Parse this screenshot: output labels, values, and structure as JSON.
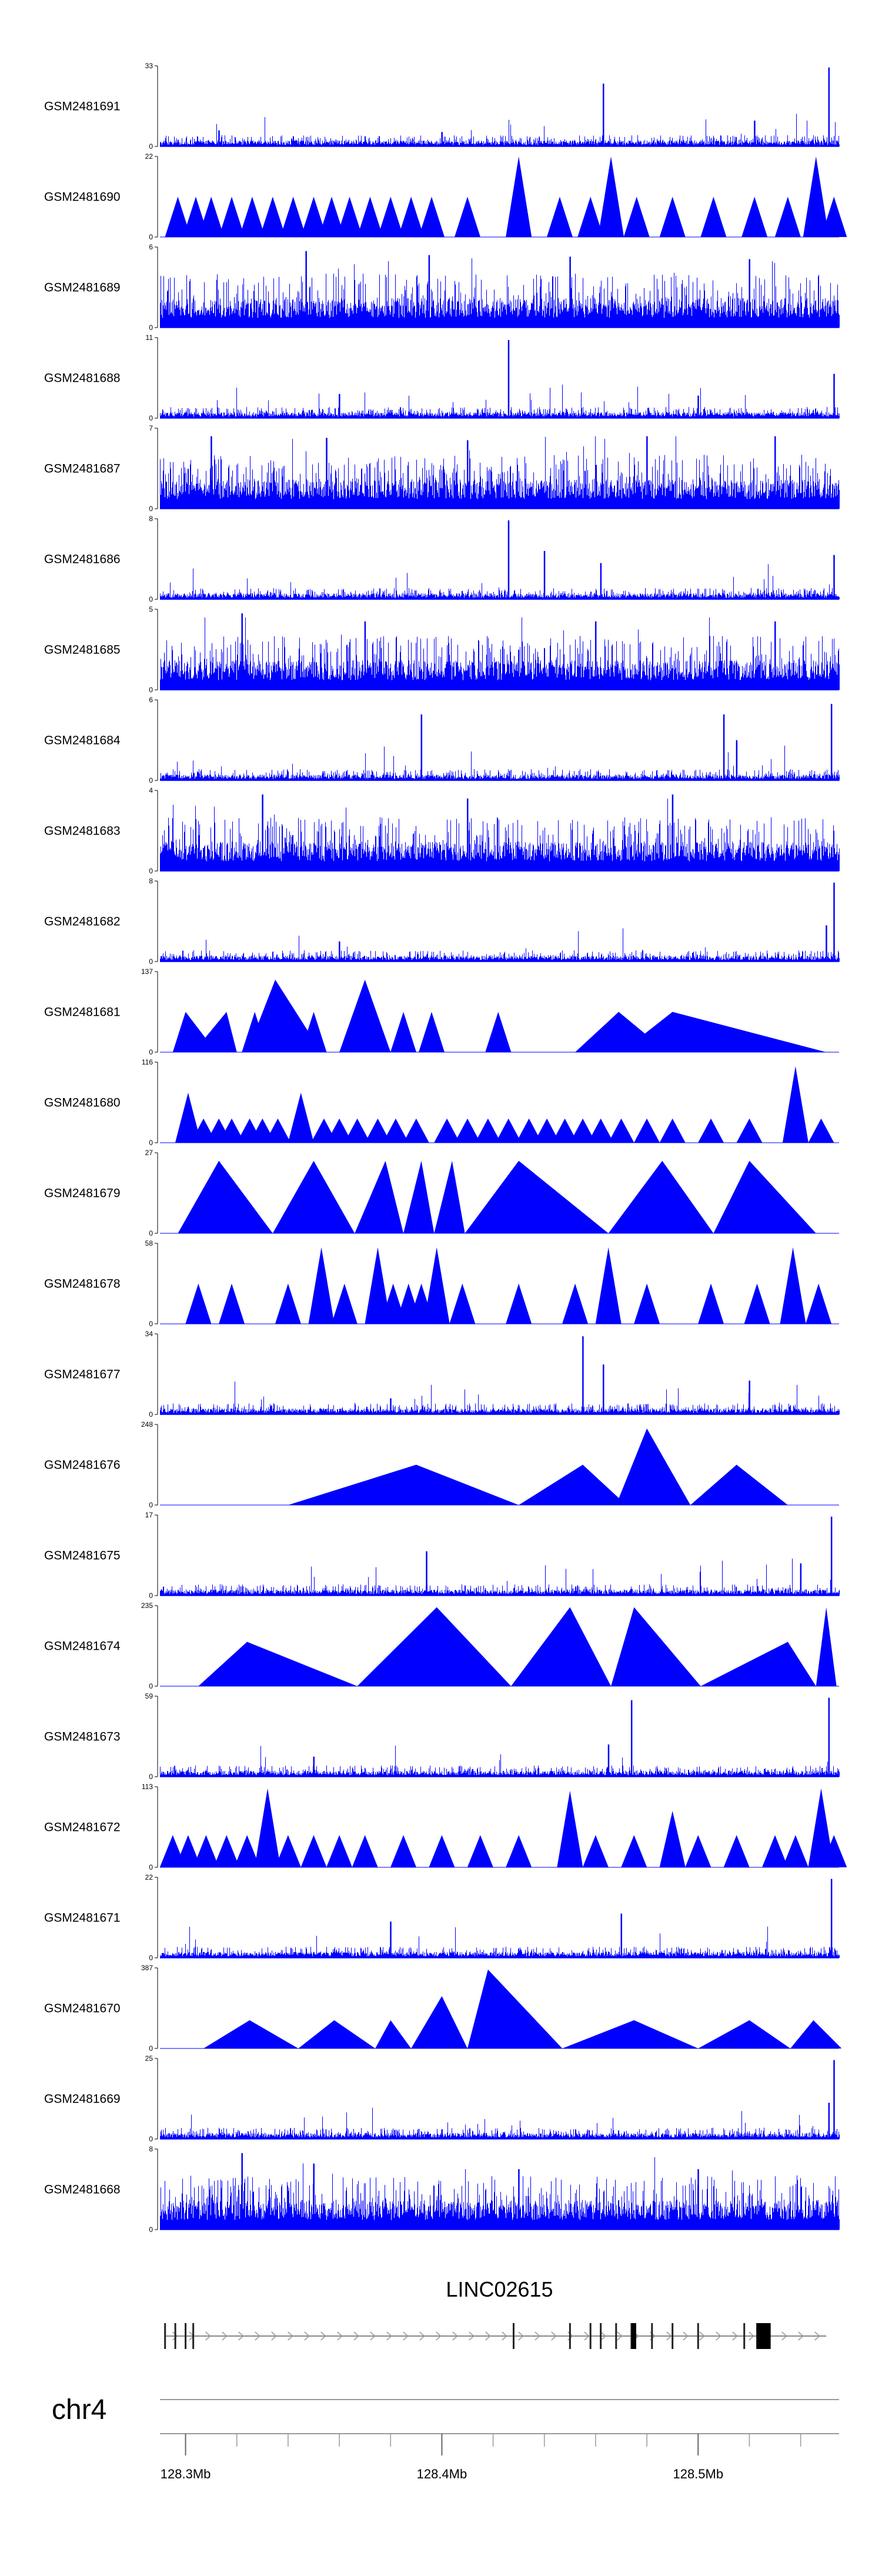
{
  "chart_data": {
    "type": "area",
    "title": "",
    "chromosome": "chr4",
    "gene": "LINC02615",
    "xlim": [
      128.29,
      128.555
    ],
    "x_unit": "Mb",
    "x_ticks": [
      {
        "value": 128.3,
        "label": "128.3Mb"
      },
      {
        "value": 128.4,
        "label": "128.4Mb"
      },
      {
        "value": 128.5,
        "label": "128.5Mb"
      }
    ],
    "color": "#0000ff",
    "tracks": [
      {
        "name": "GSM2481691",
        "ymax": 33,
        "style": "dense",
        "peaks": [
          [
            128.463,
            0.78
          ],
          [
            128.522,
            0.32
          ],
          [
            128.551,
            0.98
          ],
          [
            128.313,
            0.2
          ],
          [
            128.4,
            0.18
          ]
        ]
      },
      {
        "name": "GSM2481690",
        "ymax": 22,
        "style": "triangles",
        "peaks": [
          [
            128.297,
            0.5
          ],
          [
            128.304,
            0.5
          ],
          [
            128.31,
            0.5
          ],
          [
            128.318,
            0.5
          ],
          [
            128.326,
            0.5
          ],
          [
            128.334,
            0.5
          ],
          [
            128.342,
            0.5
          ],
          [
            128.35,
            0.5
          ],
          [
            128.357,
            0.5
          ],
          [
            128.364,
            0.5
          ],
          [
            128.372,
            0.5
          ],
          [
            128.38,
            0.5
          ],
          [
            128.388,
            0.5
          ],
          [
            128.396,
            0.5
          ],
          [
            128.41,
            0.5
          ],
          [
            128.43,
            1.0
          ],
          [
            128.446,
            0.5
          ],
          [
            128.458,
            0.5
          ],
          [
            128.466,
            1.0
          ],
          [
            128.476,
            0.5
          ],
          [
            128.49,
            0.5
          ],
          [
            128.506,
            0.5
          ],
          [
            128.522,
            0.5
          ],
          [
            128.535,
            0.5
          ],
          [
            128.546,
            1.0
          ],
          [
            128.553,
            0.5
          ]
        ]
      },
      {
        "name": "GSM2481689",
        "ymax": 6,
        "style": "noise",
        "peaks": [
          [
            128.347,
            0.95
          ],
          [
            128.395,
            0.9
          ],
          [
            128.45,
            0.88
          ],
          [
            128.52,
            0.85
          ]
        ]
      },
      {
        "name": "GSM2481688",
        "ymax": 11,
        "style": "dense",
        "peaks": [
          [
            128.426,
            0.97
          ],
          [
            128.553,
            0.55
          ],
          [
            128.36,
            0.3
          ],
          [
            128.5,
            0.28
          ]
        ]
      },
      {
        "name": "GSM2481687",
        "ymax": 7,
        "style": "noise",
        "peaks": [
          [
            128.31,
            0.9
          ],
          [
            128.355,
            0.88
          ],
          [
            128.41,
            0.85
          ],
          [
            128.48,
            0.9
          ],
          [
            128.53,
            0.9
          ]
        ]
      },
      {
        "name": "GSM2481686",
        "ymax": 8,
        "style": "dense",
        "peaks": [
          [
            128.426,
            0.98
          ],
          [
            128.44,
            0.6
          ],
          [
            128.462,
            0.45
          ],
          [
            128.553,
            0.55
          ]
        ]
      },
      {
        "name": "GSM2481685",
        "ymax": 5,
        "style": "noise",
        "peaks": [
          [
            128.322,
            0.95
          ],
          [
            128.37,
            0.85
          ],
          [
            128.46,
            0.85
          ],
          [
            128.53,
            0.85
          ]
        ]
      },
      {
        "name": "GSM2481684",
        "ymax": 6,
        "style": "dense",
        "peaks": [
          [
            128.392,
            0.82
          ],
          [
            128.51,
            0.82
          ],
          [
            128.515,
            0.5
          ],
          [
            128.552,
            0.95
          ]
        ]
      },
      {
        "name": "GSM2481683",
        "ymax": 4,
        "style": "noise",
        "peaks": [
          [
            128.33,
            0.95
          ],
          [
            128.41,
            0.9
          ],
          [
            128.49,
            0.95
          ]
        ]
      },
      {
        "name": "GSM2481682",
        "ymax": 8,
        "style": "dense",
        "peaks": [
          [
            128.553,
            0.98
          ],
          [
            128.55,
            0.45
          ],
          [
            128.36,
            0.25
          ]
        ]
      },
      {
        "name": "GSM2481681",
        "ymax": 137,
        "style": "triangles",
        "peaks": [
          [
            128.3,
            0.5,
            128.295,
            128.312
          ],
          [
            128.316,
            0.5,
            128.303,
            128.32
          ],
          [
            128.327,
            0.5
          ],
          [
            128.335,
            0.9,
            128.324,
            128.353
          ],
          [
            128.35,
            0.5
          ],
          [
            128.37,
            0.9,
            128.36,
            128.38
          ],
          [
            128.385,
            0.5
          ],
          [
            128.396,
            0.5
          ],
          [
            128.422,
            0.5
          ],
          [
            128.469,
            0.5,
            128.452,
            128.488
          ],
          [
            128.49,
            0.5,
            128.47,
            128.55
          ]
        ]
      },
      {
        "name": "GSM2481680",
        "ymax": 116,
        "style": "triangles",
        "peaks": [
          [
            128.301,
            0.62
          ],
          [
            128.307,
            0.3
          ],
          [
            128.313,
            0.3
          ],
          [
            128.318,
            0.3
          ],
          [
            128.325,
            0.3
          ],
          [
            128.33,
            0.3
          ],
          [
            128.336,
            0.3
          ],
          [
            128.345,
            0.62
          ],
          [
            128.354,
            0.3
          ],
          [
            128.36,
            0.3
          ],
          [
            128.367,
            0.3
          ],
          [
            128.375,
            0.3
          ],
          [
            128.382,
            0.3
          ],
          [
            128.39,
            0.3
          ],
          [
            128.402,
            0.3
          ],
          [
            128.41,
            0.3
          ],
          [
            128.418,
            0.3
          ],
          [
            128.426,
            0.3
          ],
          [
            128.434,
            0.3
          ],
          [
            128.441,
            0.3
          ],
          [
            128.448,
            0.3
          ],
          [
            128.455,
            0.3
          ],
          [
            128.462,
            0.3
          ],
          [
            128.47,
            0.3
          ],
          [
            128.48,
            0.3
          ],
          [
            128.49,
            0.3
          ],
          [
            128.505,
            0.3
          ],
          [
            128.52,
            0.3
          ],
          [
            128.538,
            0.95
          ],
          [
            128.548,
            0.3
          ]
        ]
      },
      {
        "name": "GSM2481679",
        "ymax": 27,
        "style": "triangles",
        "peaks": [
          [
            128.313,
            0.9,
            128.297,
            128.334
          ],
          [
            128.35,
            0.9,
            128.334,
            128.366
          ],
          [
            128.378,
            0.9,
            128.366,
            128.385
          ],
          [
            128.392,
            0.9,
            128.385,
            128.397
          ],
          [
            128.404,
            0.9,
            128.397,
            128.409
          ],
          [
            128.43,
            0.9,
            128.409,
            128.465
          ],
          [
            128.486,
            0.9,
            128.465,
            128.506
          ],
          [
            128.52,
            0.9,
            128.506,
            128.546
          ]
        ]
      },
      {
        "name": "GSM2481678",
        "ymax": 58,
        "style": "triangles",
        "peaks": [
          [
            128.305,
            0.5
          ],
          [
            128.318,
            0.5
          ],
          [
            128.34,
            0.5
          ],
          [
            128.353,
            0.95
          ],
          [
            128.362,
            0.5
          ],
          [
            128.375,
            0.95
          ],
          [
            128.381,
            0.5
          ],
          [
            128.387,
            0.5
          ],
          [
            128.392,
            0.5
          ],
          [
            128.398,
            0.95
          ],
          [
            128.408,
            0.5
          ],
          [
            128.43,
            0.5
          ],
          [
            128.452,
            0.5
          ],
          [
            128.465,
            0.95
          ],
          [
            128.48,
            0.5
          ],
          [
            128.505,
            0.5
          ],
          [
            128.523,
            0.5
          ],
          [
            128.537,
            0.95
          ],
          [
            128.547,
            0.5
          ]
        ]
      },
      {
        "name": "GSM2481677",
        "ymax": 34,
        "style": "dense",
        "peaks": [
          [
            128.455,
            0.97
          ],
          [
            128.463,
            0.62
          ],
          [
            128.52,
            0.42
          ],
          [
            128.38,
            0.2
          ]
        ]
      },
      {
        "name": "GSM2481676",
        "ymax": 248,
        "style": "triangles",
        "peaks": [
          [
            128.39,
            0.5,
            128.34,
            128.43
          ],
          [
            128.455,
            0.5,
            128.43,
            128.472
          ],
          [
            128.48,
            0.95,
            128.468,
            128.497
          ],
          [
            128.515,
            0.5,
            128.497,
            128.535
          ]
        ]
      },
      {
        "name": "GSM2481675",
        "ymax": 17,
        "style": "dense",
        "peaks": [
          [
            128.394,
            0.55
          ],
          [
            128.552,
            0.98
          ],
          [
            128.54,
            0.4
          ]
        ]
      },
      {
        "name": "GSM2481674",
        "ymax": 235,
        "style": "triangles",
        "peaks": [
          [
            128.324,
            0.55,
            128.305,
            128.367
          ],
          [
            128.398,
            0.98,
            128.367,
            128.427
          ],
          [
            128.45,
            0.98,
            128.427,
            128.466
          ],
          [
            128.475,
            0.98,
            128.466,
            128.501
          ],
          [
            128.535,
            0.55,
            128.501,
            128.546
          ],
          [
            128.55,
            0.98,
            128.546,
            128.554
          ]
        ]
      },
      {
        "name": "GSM2481673",
        "ymax": 59,
        "style": "dense",
        "peaks": [
          [
            128.474,
            0.95
          ],
          [
            128.465,
            0.4
          ],
          [
            128.551,
            0.98
          ],
          [
            128.35,
            0.25
          ]
        ]
      },
      {
        "name": "GSM2481672",
        "ymax": 113,
        "style": "triangles",
        "peaks": [
          [
            128.295,
            0.4
          ],
          [
            128.301,
            0.4
          ],
          [
            128.308,
            0.4
          ],
          [
            128.316,
            0.4
          ],
          [
            128.324,
            0.4
          ],
          [
            128.332,
            0.98
          ],
          [
            128.34,
            0.4
          ],
          [
            128.35,
            0.4
          ],
          [
            128.36,
            0.4
          ],
          [
            128.37,
            0.4
          ],
          [
            128.385,
            0.4
          ],
          [
            128.4,
            0.4
          ],
          [
            128.415,
            0.4
          ],
          [
            128.43,
            0.4
          ],
          [
            128.45,
            0.95
          ],
          [
            128.46,
            0.4
          ],
          [
            128.475,
            0.4
          ],
          [
            128.49,
            0.7
          ],
          [
            128.5,
            0.4
          ],
          [
            128.515,
            0.4
          ],
          [
            128.53,
            0.4
          ],
          [
            128.538,
            0.4
          ],
          [
            128.548,
            0.98
          ],
          [
            128.553,
            0.4
          ]
        ]
      },
      {
        "name": "GSM2481671",
        "ymax": 22,
        "style": "dense",
        "peaks": [
          [
            128.552,
            0.98
          ],
          [
            128.47,
            0.55
          ],
          [
            128.38,
            0.45
          ]
        ]
      },
      {
        "name": "GSM2481670",
        "ymax": 387,
        "style": "triangles",
        "peaks": [
          [
            128.325,
            0.35,
            128.307,
            128.344
          ],
          [
            128.358,
            0.35,
            128.344,
            128.374
          ],
          [
            128.38,
            0.35,
            128.374,
            128.388
          ],
          [
            128.4,
            0.65,
            128.388,
            128.41
          ],
          [
            128.418,
            0.98,
            128.41,
            128.447
          ],
          [
            128.475,
            0.35,
            128.447,
            128.5
          ],
          [
            128.52,
            0.35,
            128.5,
            128.536
          ],
          [
            128.545,
            0.35,
            128.536,
            128.556
          ]
        ]
      },
      {
        "name": "GSM2481669",
        "ymax": 25,
        "style": "dense",
        "peaks": [
          [
            128.553,
            0.98
          ],
          [
            128.551,
            0.45
          ],
          [
            128.4,
            0.12
          ]
        ]
      },
      {
        "name": "GSM2481668",
        "ymax": 8,
        "style": "noise",
        "peaks": [
          [
            128.322,
            0.95
          ],
          [
            128.35,
            0.82
          ],
          [
            128.43,
            0.75
          ],
          [
            128.5,
            0.75
          ]
        ]
      }
    ],
    "gene_model": {
      "start": 128.292,
      "end": 128.55,
      "exons": [
        128.292,
        128.296,
        128.3,
        128.303,
        128.428,
        128.45,
        128.458,
        128.462,
        128.468,
        128.474,
        128.482,
        128.49,
        128.5,
        128.518,
        128.523,
        128.528
      ],
      "thick_exons": [
        128.474,
        128.475,
        128.523,
        128.528
      ]
    }
  }
}
